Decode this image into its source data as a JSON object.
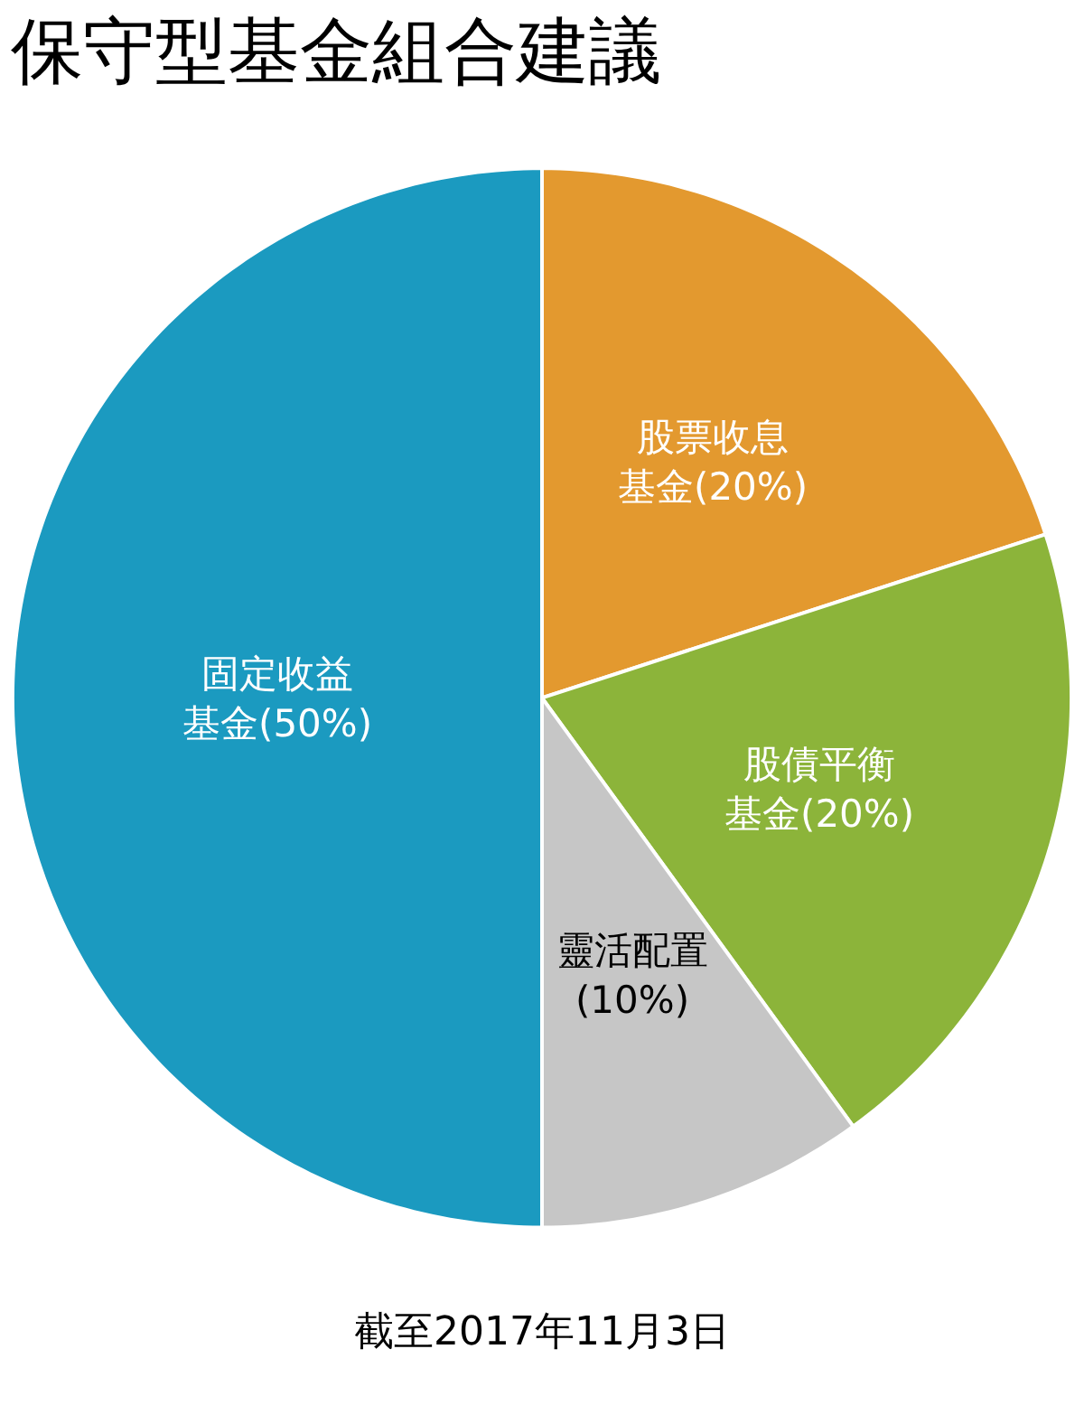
{
  "chart_data": {
    "type": "pie",
    "title": "保守型基金組合建議",
    "categories": [
      "股票收息基金(20%)",
      "股債平衡基金(20%)",
      "靈活配置(10%)",
      "固定收益基金(50%)"
    ],
    "values": [
      20,
      20,
      10,
      50
    ],
    "colors": [
      "#e3992f",
      "#8cb43a",
      "#c6c6c6",
      "#1b9ac0"
    ],
    "legend": false,
    "annotations": [
      "截至2017年11月3日"
    ]
  }
}
